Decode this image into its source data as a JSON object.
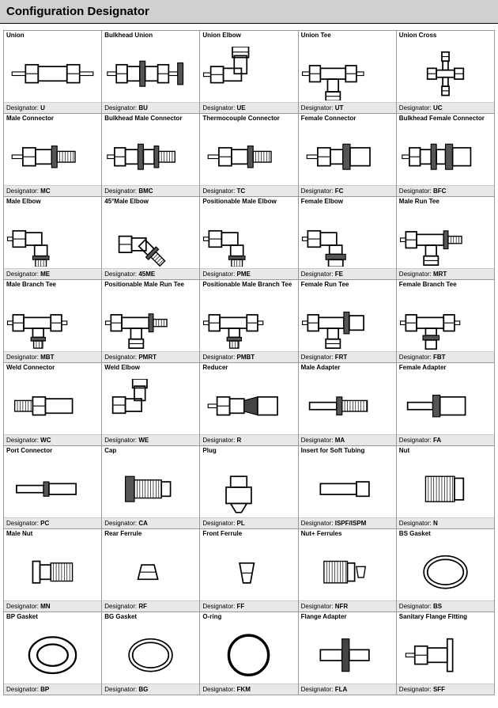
{
  "header_title": "Configuration Designator",
  "designator_label": "Designator:",
  "colors": {
    "header_bg": "#d0d0d0",
    "footer_bg": "#e8e8e8",
    "cell_border": "#999999",
    "svg_stroke": "#000000",
    "svg_fill_dark": "#333333"
  },
  "grid": {
    "columns": 5,
    "rows": 8
  },
  "items": [
    {
      "title": "Union",
      "code": "U",
      "shape": "union"
    },
    {
      "title": "Bulkhead Union",
      "code": "BU",
      "shape": "bulkhead-union"
    },
    {
      "title": "Union Elbow",
      "code": "UE",
      "shape": "elbow"
    },
    {
      "title": "Union Tee",
      "code": "UT",
      "shape": "tee"
    },
    {
      "title": "Union Cross",
      "code": "UC",
      "shape": "cross"
    },
    {
      "title": "Male Connector",
      "code": "MC",
      "shape": "male-conn"
    },
    {
      "title": "Bulkhead Male Connector",
      "code": "BMC",
      "shape": "bulkhead-male"
    },
    {
      "title": "Thermocouple Connector",
      "code": "TC",
      "shape": "male-conn"
    },
    {
      "title": "Female Connector",
      "code": "FC",
      "shape": "female-conn"
    },
    {
      "title": "Bulkhead Female Connector",
      "code": "BFC",
      "shape": "bulkhead-female"
    },
    {
      "title": "Male Elbow",
      "code": "ME",
      "shape": "male-elbow"
    },
    {
      "title": "45°Male Elbow",
      "code": "45ME",
      "shape": "elbow45"
    },
    {
      "title": "Positionable Male Elbow",
      "code": "PME",
      "shape": "male-elbow"
    },
    {
      "title": "Female Elbow",
      "code": "FE",
      "shape": "female-elbow"
    },
    {
      "title": "Male Run Tee",
      "code": "MRT",
      "shape": "tee-male"
    },
    {
      "title": "Male Branch Tee",
      "code": "MBT",
      "shape": "tee-male-branch"
    },
    {
      "title": "Positionable Male Run Tee",
      "code": "PMRT",
      "shape": "tee-male"
    },
    {
      "title": "Positionable Male Branch Tee",
      "code": "PMBT",
      "shape": "tee-male-branch"
    },
    {
      "title": "Female Run Tee",
      "code": "FRT",
      "shape": "tee-female"
    },
    {
      "title": "Female Branch Tee",
      "code": "FBT",
      "shape": "tee-female-branch"
    },
    {
      "title": "Weld Connector",
      "code": "WC",
      "shape": "weld-conn"
    },
    {
      "title": "Weld Elbow",
      "code": "WE",
      "shape": "weld-elbow"
    },
    {
      "title": "Reducer",
      "code": "R",
      "shape": "reducer"
    },
    {
      "title": "Male Adapter",
      "code": "MA",
      "shape": "male-adapter"
    },
    {
      "title": "Female Adapter",
      "code": "FA",
      "shape": "female-adapter"
    },
    {
      "title": "Port Connector",
      "code": "PC",
      "shape": "port-conn"
    },
    {
      "title": "Cap",
      "code": "CA",
      "shape": "cap"
    },
    {
      "title": "Plug",
      "code": "PL",
      "shape": "plug"
    },
    {
      "title": "Insert for Soft Tubing",
      "code": "ISPF/ISPM",
      "shape": "insert"
    },
    {
      "title": "Nut",
      "code": "N",
      "shape": "nut"
    },
    {
      "title": "Male Nut",
      "code": "MN",
      "shape": "male-nut"
    },
    {
      "title": "Rear Ferrule",
      "code": "RF",
      "shape": "ferrule-r"
    },
    {
      "title": "Front Ferrule",
      "code": "FF",
      "shape": "ferrule-f"
    },
    {
      "title": "Nut+ Ferrules",
      "code": "NFR",
      "shape": "nut-ferr"
    },
    {
      "title": "BS Gasket",
      "code": "BS",
      "shape": "ring-thin"
    },
    {
      "title": "BP Gasket",
      "code": "BP",
      "shape": "ring"
    },
    {
      "title": "BG Gasket",
      "code": "BG",
      "shape": "ring-thin"
    },
    {
      "title": "O-ring",
      "code": "FKM",
      "shape": "oring"
    },
    {
      "title": "Flange Adapter",
      "code": "FLA",
      "shape": "flange"
    },
    {
      "title": "Sanitary Flange Fitting",
      "code": "SFF",
      "shape": "sanitary"
    }
  ]
}
